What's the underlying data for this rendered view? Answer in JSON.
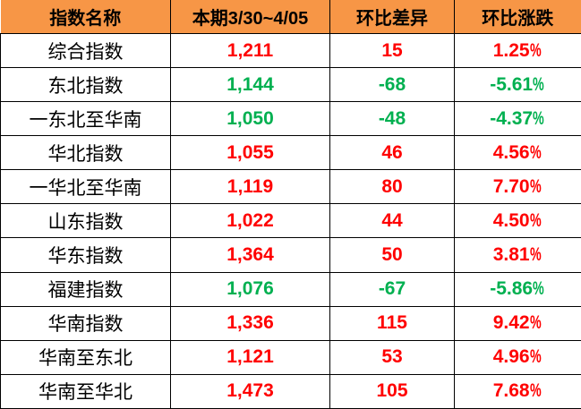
{
  "colors": {
    "header_bg": "#F79646",
    "header_text": "#000000",
    "up": "#FF0000",
    "down": "#00B050",
    "label_text": "#000000",
    "border": "#000000",
    "row_bg": "#FFFFFF"
  },
  "chart_data": {
    "type": "table",
    "columns": [
      "指数名称",
      "本期3/30~4/05",
      "环比差异",
      "环比涨跌"
    ],
    "rows": [
      {
        "name": "综合指数",
        "current": "1,211",
        "diff": "15",
        "change": "1.25%",
        "trend": "up"
      },
      {
        "name": "东北指数",
        "current": "1,144",
        "diff": "-68",
        "change": "-5.61%",
        "trend": "down"
      },
      {
        "name": "一东北至华南",
        "current": "1,050",
        "diff": "-48",
        "change": "-4.37%",
        "trend": "down"
      },
      {
        "name": "华北指数",
        "current": "1,055",
        "diff": "46",
        "change": "4.56%",
        "trend": "up"
      },
      {
        "name": "一华北至华南",
        "current": "1,119",
        "diff": "80",
        "change": "7.70%",
        "trend": "up"
      },
      {
        "name": "山东指数",
        "current": "1,022",
        "diff": "44",
        "change": "4.50%",
        "trend": "up"
      },
      {
        "name": "华东指数",
        "current": "1,364",
        "diff": "50",
        "change": "3.81%",
        "trend": "up"
      },
      {
        "name": "福建指数",
        "current": "1,076",
        "diff": "-67",
        "change": "-5.86%",
        "trend": "down"
      },
      {
        "name": "华南指数",
        "current": "1,336",
        "diff": "115",
        "change": "9.42%",
        "trend": "up"
      },
      {
        "name": "华南至东北",
        "current": "1,121",
        "diff": "53",
        "change": "4.96%",
        "trend": "up"
      },
      {
        "name": "华南至华北",
        "current": "1,473",
        "diff": "105",
        "change": "7.68%",
        "trend": "up"
      }
    ]
  }
}
